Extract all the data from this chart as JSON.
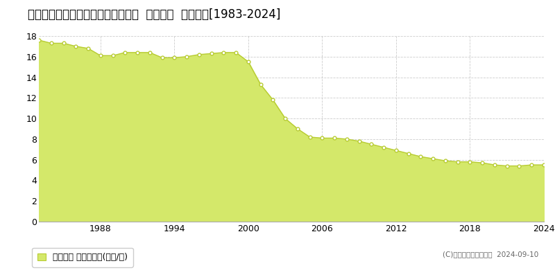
{
  "title": "新潟県長岡市城岡２丁目２３番１外  地価公示  地価推移[1983-2024]",
  "years": [
    1983,
    1984,
    1985,
    1986,
    1987,
    1988,
    1989,
    1990,
    1991,
    1992,
    1993,
    1994,
    1995,
    1996,
    1997,
    1998,
    1999,
    2000,
    2001,
    2002,
    2003,
    2004,
    2005,
    2006,
    2007,
    2008,
    2009,
    2010,
    2011,
    2012,
    2013,
    2014,
    2015,
    2016,
    2017,
    2018,
    2019,
    2020,
    2021,
    2022,
    2023,
    2024
  ],
  "values": [
    17.6,
    17.3,
    17.3,
    17.0,
    16.8,
    16.1,
    16.1,
    16.4,
    16.4,
    16.4,
    15.9,
    15.9,
    16.0,
    16.2,
    16.3,
    16.4,
    16.4,
    15.5,
    13.3,
    11.8,
    10.0,
    9.0,
    8.2,
    8.1,
    8.1,
    8.0,
    7.8,
    7.5,
    7.2,
    6.9,
    6.6,
    6.3,
    6.1,
    5.9,
    5.8,
    5.8,
    5.7,
    5.5,
    5.4,
    5.4,
    5.5,
    5.5
  ],
  "fill_color": "#d4e86a",
  "line_color": "#b8cc33",
  "marker_facecolor": "#ffffff",
  "marker_edgecolor": "#b8cc33",
  "background_color": "#ffffff",
  "plot_bg_color": "#ffffff",
  "grid_color": "#cccccc",
  "ylim": [
    0,
    18
  ],
  "yticks": [
    0,
    2,
    4,
    6,
    8,
    10,
    12,
    14,
    16,
    18
  ],
  "xticks": [
    1988,
    1994,
    2000,
    2006,
    2012,
    2018,
    2024
  ],
  "legend_label": "地価公示 平均坪単価(万円/坪)",
  "copyright_text": "(C)土地価格ドットコム  2024-09-10",
  "title_fontsize": 12,
  "axis_fontsize": 9,
  "legend_fontsize": 9
}
